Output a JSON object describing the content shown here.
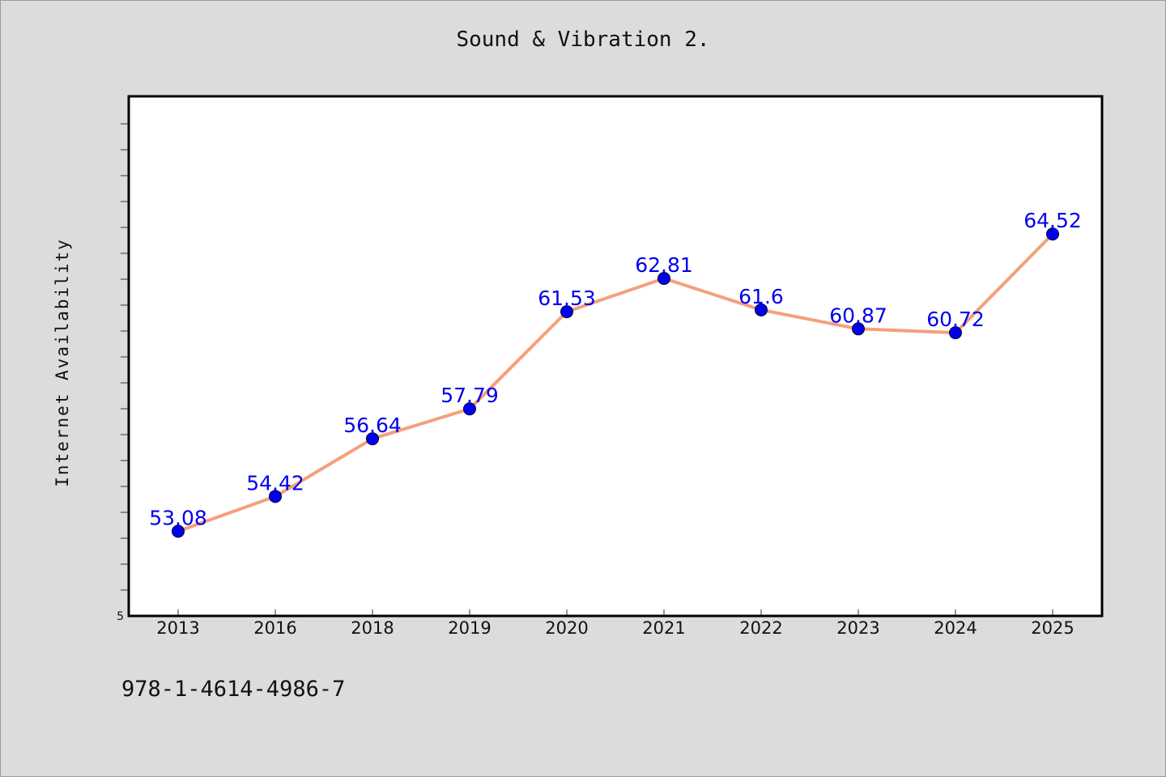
{
  "chart_data": {
    "type": "line",
    "title": "Sound & Vibration 2.",
    "xlabel": "",
    "ylabel": "Internet Availability",
    "categories": [
      "2013",
      "2016",
      "2018",
      "2019",
      "2020",
      "2021",
      "2022",
      "2023",
      "2024",
      "2025"
    ],
    "series": [
      {
        "values": [
          53.08,
          54.42,
          56.64,
          57.79,
          61.53,
          62.81,
          61.6,
          60.87,
          60.72,
          64.52
        ],
        "value_labels": [
          "53.08",
          "54.42",
          "56.64",
          "57.79",
          "61.53",
          "62.81",
          "61.6",
          "60.87",
          "60.72",
          "64.52"
        ],
        "line_color": "#f4a07c",
        "marker_color": "#0000ee",
        "label_color": "#0000ee"
      }
    ],
    "ylim": [
      49.82,
      69.82
    ],
    "ytick_labels": [
      {
        "value": 49.82,
        "label": "5"
      }
    ],
    "grid": false,
    "legend": "none"
  },
  "footnote": "978-1-4614-4986-7"
}
